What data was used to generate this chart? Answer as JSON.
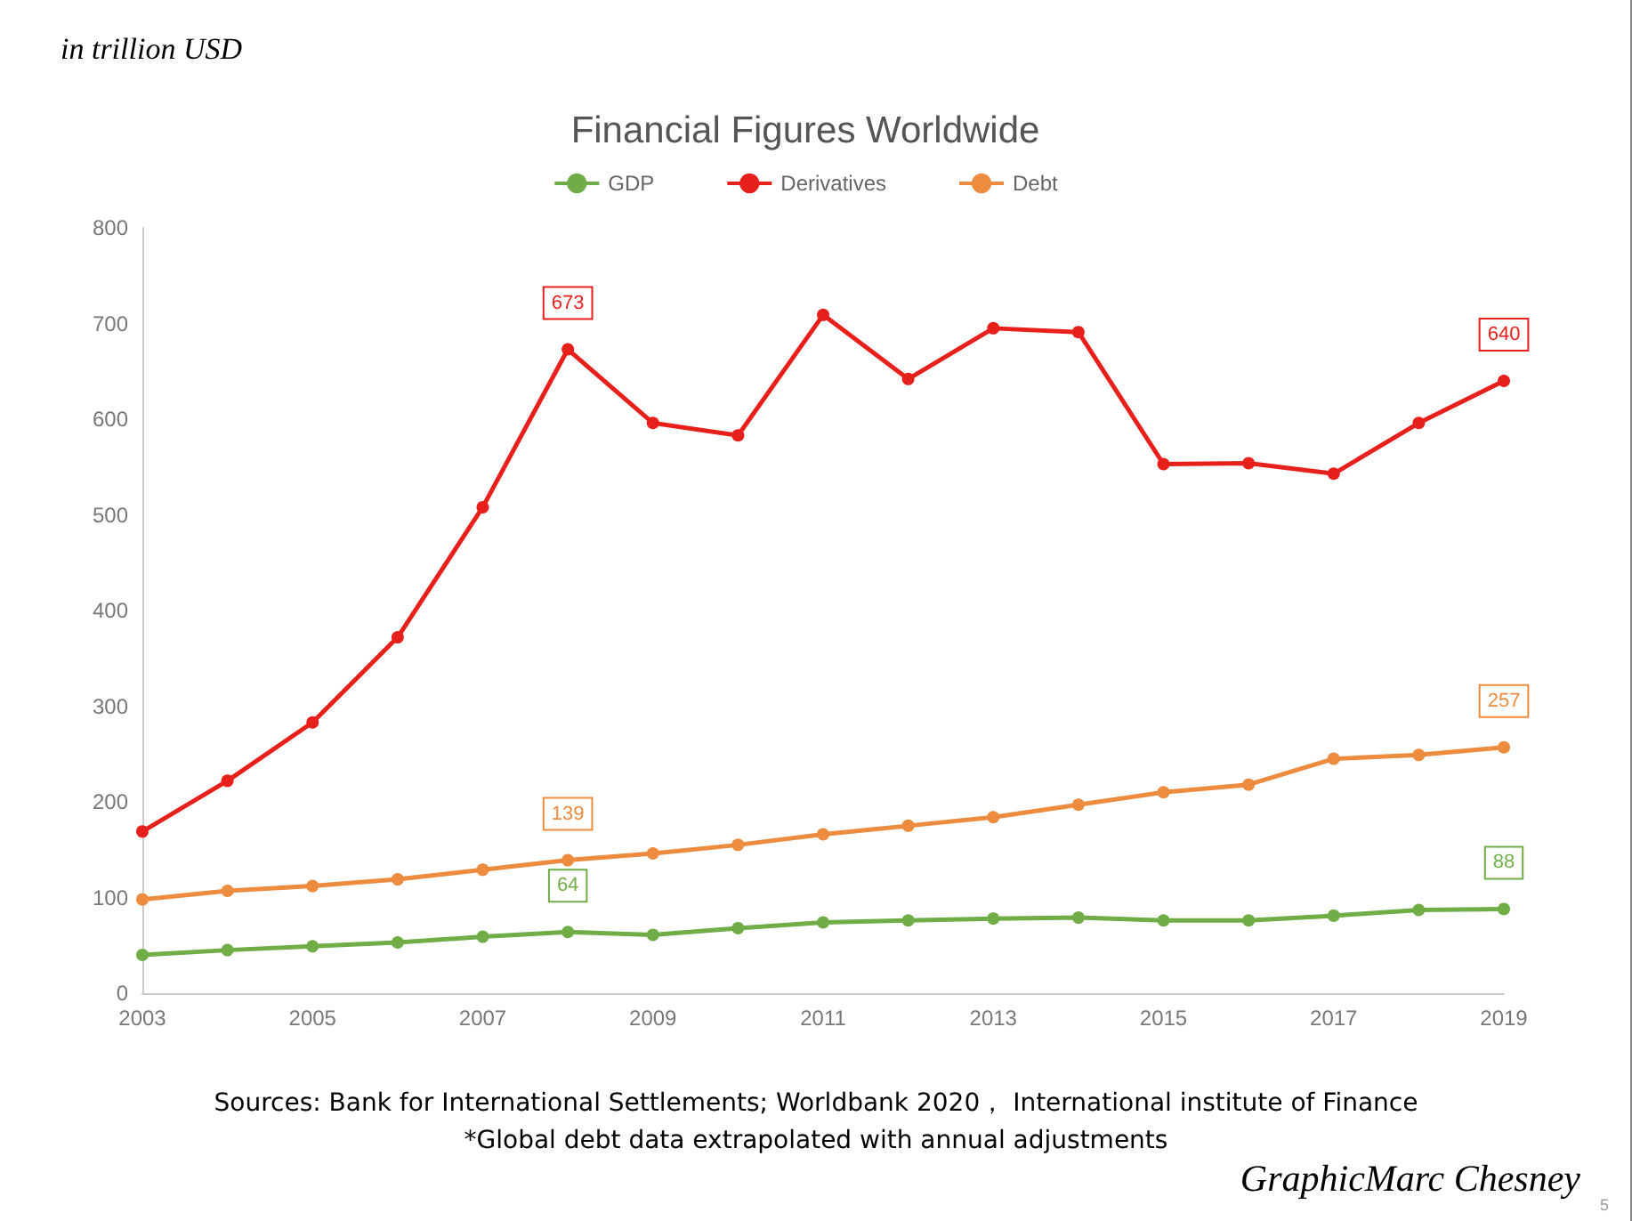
{
  "chart_data": {
    "type": "line",
    "title": "Financial Figures Worldwide",
    "ylabel": "in trillion USD",
    "annotations": [
      "Sources: Bank for International Settlements; Worldbank 2020， International institute of Finance",
      "*Global debt data extrapolated with annual adjustments",
      "GraphicMarc Chesney",
      "5"
    ],
    "x": [
      2003,
      2004,
      2005,
      2006,
      2007,
      2008,
      2009,
      2010,
      2011,
      2012,
      2013,
      2014,
      2015,
      2016,
      2017,
      2018,
      2019
    ],
    "series": [
      {
        "name": "GDP",
        "color": "#70ad47",
        "values": [
          40,
          45,
          49,
          53,
          59,
          64,
          61,
          68,
          74,
          76,
          78,
          79,
          76,
          76,
          81,
          87,
          88
        ],
        "value_labels": [
          null,
          null,
          null,
          null,
          null,
          "64",
          null,
          null,
          null,
          null,
          null,
          null,
          null,
          null,
          null,
          null,
          "88"
        ]
      },
      {
        "name": "Derivatives",
        "color": "#e8201c",
        "values": [
          169,
          222,
          283,
          372,
          508,
          673,
          596,
          583,
          709,
          642,
          695,
          691,
          553,
          554,
          543,
          596,
          640
        ],
        "value_labels": [
          null,
          null,
          null,
          null,
          null,
          "673",
          null,
          null,
          null,
          null,
          null,
          null,
          null,
          null,
          null,
          null,
          "640"
        ]
      },
      {
        "name": "Debt",
        "color": "#ed8b3e",
        "values": [
          98,
          107,
          112,
          119,
          129,
          139,
          146,
          155,
          166,
          175,
          184,
          197,
          210,
          218,
          245,
          249,
          257
        ],
        "value_labels": [
          null,
          null,
          null,
          null,
          null,
          "139",
          null,
          null,
          null,
          null,
          null,
          null,
          null,
          null,
          null,
          null,
          "257"
        ]
      }
    ],
    "xlim": [
      2003,
      2019
    ],
    "xticks": [
      2003,
      2005,
      2007,
      2009,
      2011,
      2013,
      2015,
      2017,
      2019
    ],
    "ylim": [
      0,
      800
    ],
    "yticks": [
      0,
      100,
      200,
      300,
      400,
      500,
      600,
      700,
      800
    ],
    "grid": false,
    "legend": "top",
    "marker": "circle",
    "line_style": "solid"
  }
}
